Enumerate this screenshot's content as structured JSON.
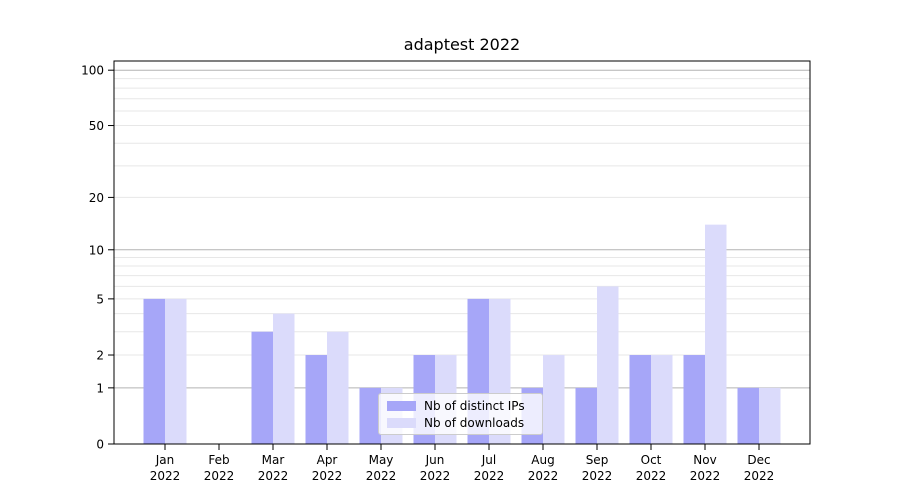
{
  "chart_data": {
    "type": "bar",
    "title": "adaptest 2022",
    "categories": [
      "Jan",
      "Feb",
      "Mar",
      "Apr",
      "May",
      "Jun",
      "Jul",
      "Aug",
      "Sep",
      "Oct",
      "Nov",
      "Dec"
    ],
    "year": "2022",
    "series": [
      {
        "name": "Nb of distinct IPs",
        "color": "#a6a6f8",
        "values": [
          5,
          0,
          3,
          2,
          1,
          2,
          5,
          1,
          1,
          2,
          2,
          1
        ]
      },
      {
        "name": "Nb of downloads",
        "color": "#dbdbfb",
        "values": [
          5,
          0,
          4,
          3,
          1,
          2,
          5,
          2,
          6,
          2,
          14,
          1
        ]
      }
    ],
    "xlabel": "",
    "ylabel": "",
    "yscale": "log1p",
    "ylim": [
      0,
      111
    ],
    "yticks": [
      0,
      1,
      2,
      5,
      10,
      20,
      50,
      100
    ],
    "major_grid_values": [
      1,
      10,
      100
    ],
    "minor_grid_values": [
      2,
      3,
      4,
      5,
      6,
      7,
      8,
      9,
      20,
      30,
      40,
      50,
      60,
      70,
      80,
      90
    ],
    "grid": true,
    "legend_position": "lower center",
    "colors": {
      "major_grid": "#b3b3b3",
      "minor_grid": "#e7e7e7",
      "axis": "#000000",
      "text": "#000000"
    }
  }
}
